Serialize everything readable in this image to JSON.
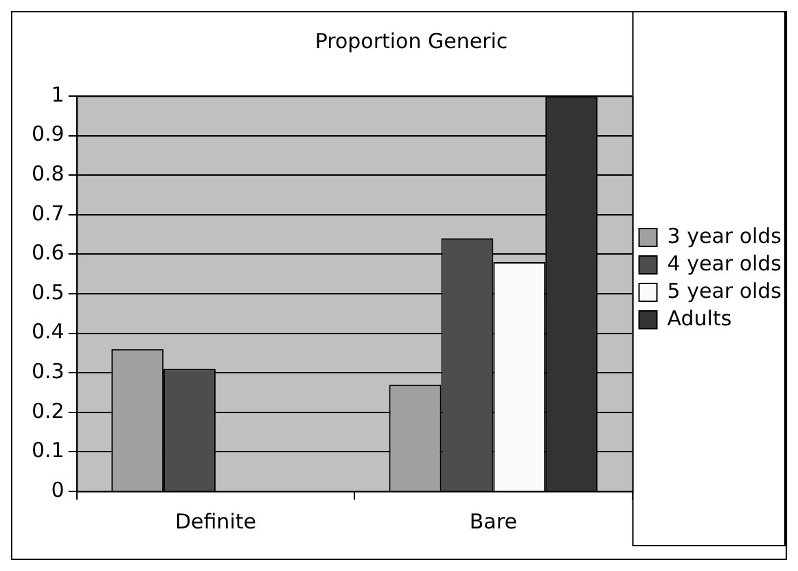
{
  "chart_data": {
    "type": "bar",
    "title": "Proportion Generic",
    "categories": [
      "Definite",
      "Bare"
    ],
    "series": [
      {
        "name": "3 year olds",
        "color": "#a0a0a0",
        "values": [
          0.36,
          0.27
        ]
      },
      {
        "name": "4 year olds",
        "color": "#4d4d4d",
        "values": [
          0.31,
          0.64
        ]
      },
      {
        "name": "5 year olds",
        "color": "#fafafa",
        "values": [
          null,
          0.58
        ]
      },
      {
        "name": "Adults",
        "color": "#333333",
        "values": [
          null,
          1
        ]
      }
    ],
    "ylim": [
      0,
      1
    ],
    "yticks": [
      0,
      0.1,
      0.2,
      0.3,
      0.4,
      0.5,
      0.6,
      0.7,
      0.8,
      0.9,
      1
    ],
    "grid": "y",
    "legend": "right"
  }
}
